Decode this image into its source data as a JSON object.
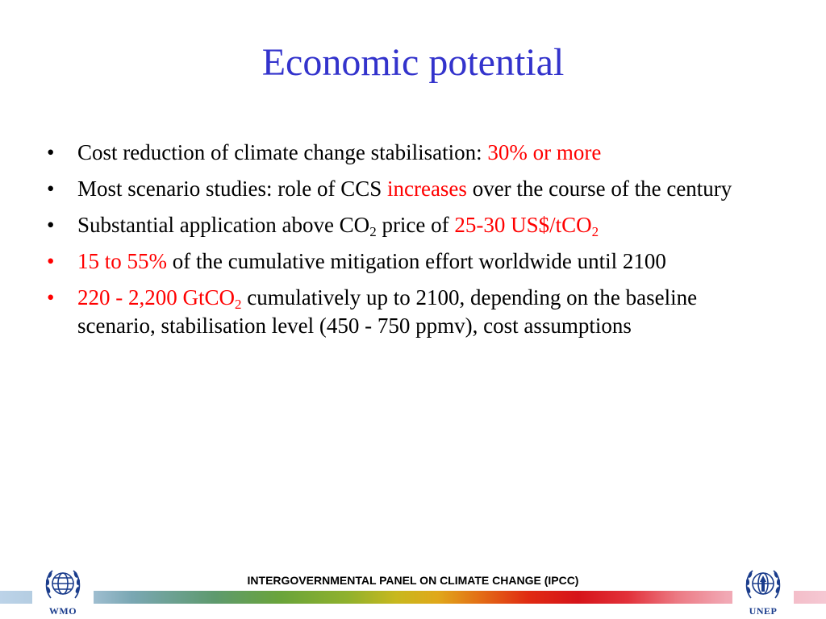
{
  "slide": {
    "title": "Economic potential",
    "bullets": [
      {
        "segments": [
          {
            "text": "Cost reduction of climate change stabilisation: ",
            "highlight": false
          },
          {
            "text": "30% or more",
            "highlight": true
          }
        ]
      },
      {
        "segments": [
          {
            "text": "Most scenario studies: role of CCS ",
            "highlight": false
          },
          {
            "text": "increases",
            "highlight": true
          },
          {
            "text": " over the course of the century",
            "highlight": false
          }
        ]
      },
      {
        "b3a": "Substantial application above CO",
        "b3sub": "2",
        "b3b": " price of  ",
        "b3c": "25-30 US$/tCO",
        "b3csub": "2"
      },
      {
        "b4a": "15 to 55%",
        "b4b": " of the cumulative mitigation effort worldwide until 2100"
      },
      {
        "b5a": "220 - 2,200 GtCO",
        "b5sub": "2",
        "b5b": " cumulatively up to 2100, depending on the baseline scenario, stabilisation level (450 - 750 ppmv), cost assumptions"
      }
    ],
    "bullet_char": "•"
  },
  "footer": {
    "organization": "INTERGOVERNMENTAL PANEL ON CLIMATE CHANGE (IPCC)",
    "left_logo_caption": "WMO",
    "right_logo_caption": "UNEP",
    "left_logo_icon": "wmo-emblem-icon",
    "right_logo_icon": "unep-emblem-icon"
  },
  "colors": {
    "title": "#3333cc",
    "highlight": "#ff0000",
    "logo_caption": "#1a3c8c"
  }
}
